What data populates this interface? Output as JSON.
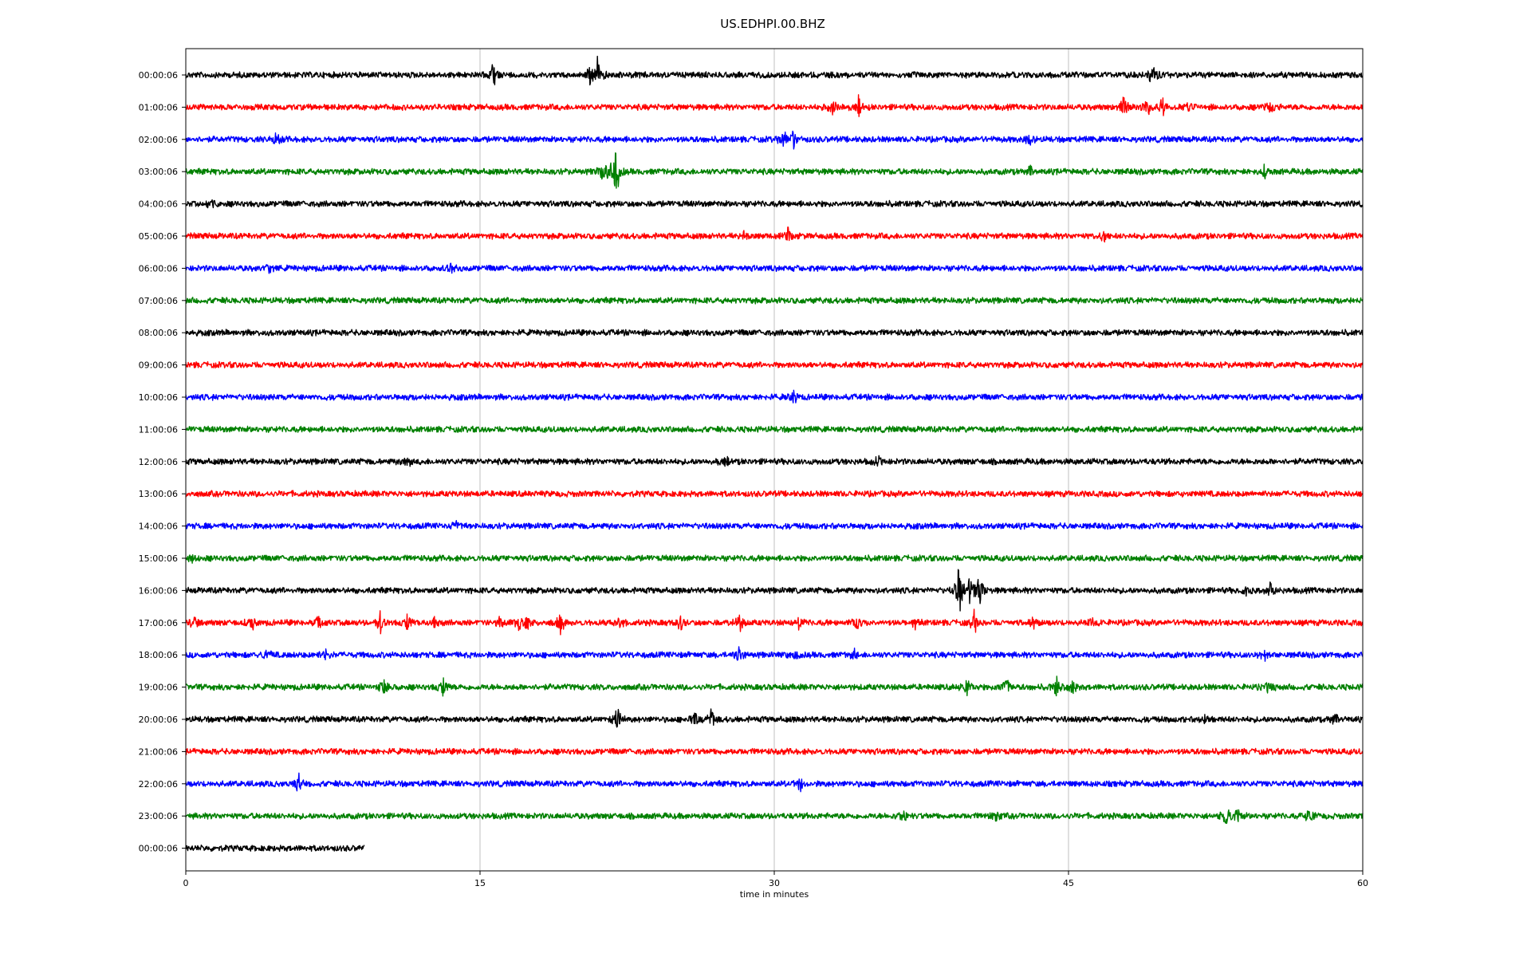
{
  "chart_data": {
    "type": "line",
    "title": "US.EDHPI.00.BHZ",
    "xlabel": "time in minutes",
    "ylabel": "",
    "xlim": [
      0,
      60
    ],
    "xticks": [
      0,
      15,
      30,
      45,
      60
    ],
    "grid": "vertical",
    "colors": [
      "#000000",
      "#ff0000",
      "#0000ff",
      "#008000"
    ],
    "rows": [
      {
        "label": "00:00:06",
        "events": [
          [
            15.7,
            0.8
          ],
          [
            21,
            1.0
          ],
          [
            49.3,
            0.7
          ],
          [
            20.6,
            0.5
          ]
        ]
      },
      {
        "label": "01:00:06",
        "events": [
          [
            33,
            0.4
          ],
          [
            34.3,
            0.5
          ],
          [
            47.8,
            0.5
          ],
          [
            49,
            0.6
          ],
          [
            49.8,
            0.5
          ],
          [
            51,
            0.4
          ],
          [
            55.3,
            0.3
          ]
        ]
      },
      {
        "label": "02:00:06",
        "events": [
          [
            4.6,
            0.4
          ],
          [
            30.5,
            0.7
          ],
          [
            31,
            0.5
          ],
          [
            43,
            0.3
          ]
        ]
      },
      {
        "label": "03:00:06",
        "events": [
          [
            21.9,
            2.4
          ],
          [
            21.3,
            0.7
          ],
          [
            43,
            0.3
          ],
          [
            55,
            0.3
          ]
        ]
      },
      {
        "label": "04:00:06",
        "events": [
          [
            1.2,
            0.4
          ]
        ]
      },
      {
        "label": "05:00:06",
        "events": [
          [
            28.5,
            0.3
          ],
          [
            30.7,
            0.4
          ],
          [
            46.8,
            0.4
          ]
        ]
      },
      {
        "label": "06:00:06",
        "events": [
          [
            4.3,
            0.3
          ],
          [
            13.5,
            0.3
          ]
        ]
      },
      {
        "label": "07:00:06",
        "events": []
      },
      {
        "label": "08:00:06",
        "events": []
      },
      {
        "label": "09:00:06",
        "events": []
      },
      {
        "label": "10:00:06",
        "events": [
          [
            31,
            0.3
          ]
        ]
      },
      {
        "label": "11:00:06",
        "events": []
      },
      {
        "label": "12:00:06",
        "events": [
          [
            11.3,
            0.3
          ],
          [
            27.5,
            0.3
          ],
          [
            35.3,
            0.3
          ]
        ]
      },
      {
        "label": "13:00:06",
        "events": []
      },
      {
        "label": "14:00:06",
        "events": [
          [
            13.8,
            0.3
          ]
        ]
      },
      {
        "label": "15:00:06",
        "events": [
          [
            0.3,
            0.3
          ]
        ]
      },
      {
        "label": "16:00:06",
        "events": [
          [
            39.4,
            1.6
          ],
          [
            40,
            1.2
          ],
          [
            40.5,
            1.0
          ],
          [
            54.1,
            0.4
          ],
          [
            55.3,
            0.5
          ]
        ]
      },
      {
        "label": "17:00:06",
        "events": [
          [
            0.4,
            0.4
          ],
          [
            3.4,
            0.5
          ],
          [
            6.8,
            0.4
          ],
          [
            9.9,
            0.6
          ],
          [
            11.3,
            0.5
          ],
          [
            12.7,
            0.4
          ],
          [
            16.1,
            0.5
          ],
          [
            17,
            0.5
          ],
          [
            17.4,
            0.4
          ],
          [
            19.1,
            0.6
          ],
          [
            22.1,
            0.5
          ],
          [
            25.2,
            0.5
          ],
          [
            28.2,
            0.6
          ],
          [
            31.2,
            0.5
          ],
          [
            34.2,
            0.4
          ],
          [
            37.2,
            0.4
          ],
          [
            40.2,
            0.6
          ],
          [
            43.2,
            0.3
          ],
          [
            46.2,
            0.3
          ]
        ]
      },
      {
        "label": "18:00:06",
        "events": [
          [
            4.1,
            0.4
          ],
          [
            7.1,
            0.3
          ],
          [
            28.2,
            0.5
          ],
          [
            31.1,
            0.3
          ],
          [
            34.1,
            0.3
          ],
          [
            55,
            0.3
          ]
        ]
      },
      {
        "label": "19:00:06",
        "events": [
          [
            10.1,
            0.5
          ],
          [
            13.1,
            0.6
          ],
          [
            39.8,
            0.5
          ],
          [
            41.8,
            0.6
          ],
          [
            44.4,
            0.6
          ],
          [
            45.2,
            0.4
          ],
          [
            55.2,
            0.3
          ]
        ]
      },
      {
        "label": "20:00:06",
        "events": [
          [
            22,
            0.8
          ],
          [
            26,
            0.5
          ],
          [
            26.8,
            0.6
          ],
          [
            52,
            0.3
          ],
          [
            58.5,
            0.4
          ]
        ]
      },
      {
        "label": "21:00:06",
        "events": []
      },
      {
        "label": "22:00:06",
        "events": [
          [
            5.8,
            0.6
          ],
          [
            31.3,
            0.5
          ]
        ]
      },
      {
        "label": "23:00:06",
        "events": [
          [
            36.6,
            0.4
          ],
          [
            41.3,
            0.4
          ],
          [
            53,
            0.6
          ],
          [
            53.6,
            0.4
          ],
          [
            57.3,
            0.5
          ]
        ]
      },
      {
        "label": "00:00:06",
        "end": 9.1,
        "events": []
      }
    ]
  }
}
